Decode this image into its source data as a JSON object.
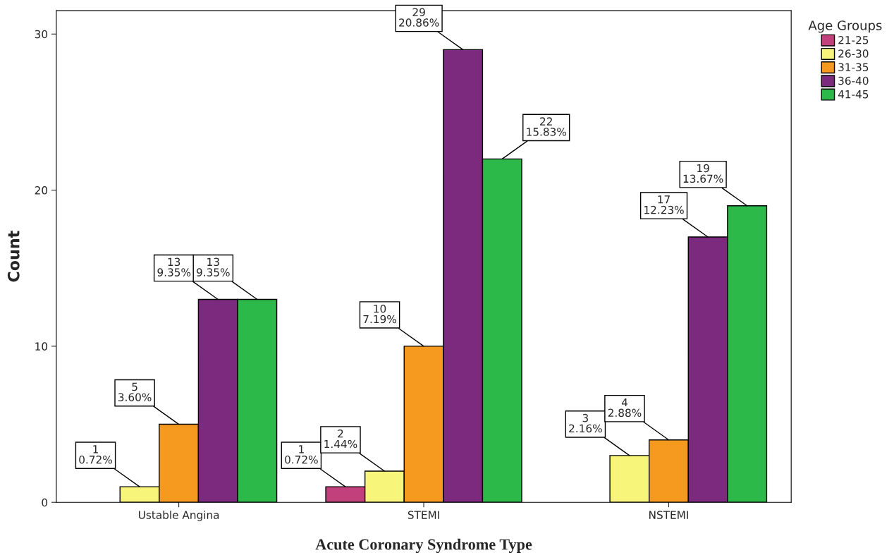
{
  "chart_data": {
    "type": "bar",
    "xlabel": "Acute Coronary Syndrome Type",
    "ylabel": "Count",
    "legend_title": "Age Groups",
    "legend": "right",
    "grid": false,
    "categories": [
      "Ustable Angina",
      "STEMI",
      "NSTEMI"
    ],
    "ylim": [
      0,
      31.5
    ],
    "yticks": [
      0,
      10,
      20,
      30
    ],
    "series": [
      {
        "name": "21-25",
        "color": "#c2407c",
        "values": [
          null,
          1,
          null
        ],
        "value_labels": [
          null,
          "1\n0.72%",
          null
        ]
      },
      {
        "name": "26-30",
        "color": "#f7f57a",
        "values": [
          1,
          2,
          3
        ],
        "value_labels": [
          "1\n0.72%",
          "2\n1.44%",
          "3\n2.16%"
        ]
      },
      {
        "name": "31-35",
        "color": "#f59a1f",
        "values": [
          5,
          10,
          4
        ],
        "value_labels": [
          "5\n3.60%",
          "10\n7.19%",
          "4\n2.88%"
        ]
      },
      {
        "name": "36-40",
        "color": "#7b2a7e",
        "values": [
          13,
          29,
          17
        ],
        "value_labels": [
          "13\n9.35%",
          "29\n20.86%",
          "17\n12.23%"
        ]
      },
      {
        "name": "41-45",
        "color": "#2db84a",
        "values": [
          13,
          22,
          19
        ],
        "value_labels": [
          "13\n9.35%",
          "22\n15.83%",
          "19\n13.67%"
        ]
      }
    ]
  }
}
